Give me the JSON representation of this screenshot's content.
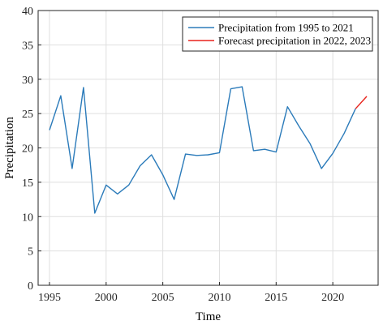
{
  "chart_data": {
    "type": "line",
    "title": "",
    "xlabel": "Time",
    "ylabel": "Precipitation",
    "xlim": [
      1994,
      2024
    ],
    "ylim": [
      0,
      40
    ],
    "x_ticks": [
      1995,
      2000,
      2005,
      2010,
      2015,
      2020
    ],
    "y_ticks": [
      0,
      5,
      10,
      15,
      20,
      25,
      30,
      35,
      40
    ],
    "grid": true,
    "legend_position": "top-right",
    "series": [
      {
        "name": "Precipitation from 1995 to 2021",
        "color": "#2b7bba",
        "x": [
          1995,
          1996,
          1997,
          1998,
          1999,
          2000,
          2001,
          2002,
          2003,
          2004,
          2005,
          2006,
          2007,
          2008,
          2009,
          2010,
          2011,
          2012,
          2013,
          2014,
          2015,
          2016,
          2017,
          2018,
          2019,
          2020,
          2021,
          2022
        ],
        "y": [
          22.6,
          27.6,
          17.0,
          28.8,
          10.5,
          14.6,
          13.3,
          14.6,
          17.4,
          19.0,
          16.1,
          12.5,
          19.1,
          18.9,
          19.0,
          19.3,
          28.6,
          28.9,
          19.6,
          19.8,
          19.4,
          26.0,
          23.2,
          20.6,
          17.0,
          19.2,
          22.1,
          25.7
        ]
      },
      {
        "name": "Forecast precipitation in 2022, 2023",
        "color": "#e8221b",
        "x": [
          2022,
          2023
        ],
        "y": [
          25.7,
          27.5
        ]
      }
    ]
  }
}
